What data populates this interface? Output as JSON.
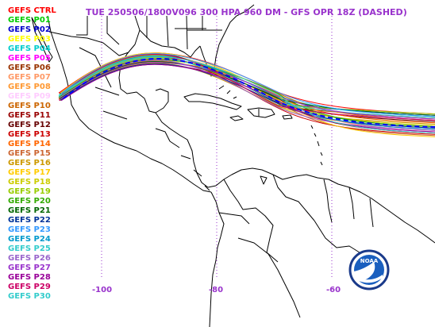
{
  "title": "TUE 250506/1800V096  300 HPA 960 DM - GFS OPR 18Z (DASHED)",
  "legend": [
    {
      "label": "GEFS CTRL",
      "color": "#ff0000"
    },
    {
      "label": "GEFS P01",
      "color": "#00cc00"
    },
    {
      "label": "GEFS P02",
      "color": "#0000cc"
    },
    {
      "label": "GEFS P03",
      "color": "#ffff00"
    },
    {
      "label": "GEFS P04",
      "color": "#00cccc"
    },
    {
      "label": "GEFS P05",
      "color": "#ff00ff"
    },
    {
      "label": "GEFS P06",
      "color": "#993300"
    },
    {
      "label": "GEFS P07",
      "color": "#ff9966"
    },
    {
      "label": "GEFS P08",
      "color": "#ff9933"
    },
    {
      "label": "GEFS P09",
      "color": "#ffccff"
    },
    {
      "label": "GEFS P10",
      "color": "#cc6600"
    },
    {
      "label": "GEFS P11",
      "color": "#990000"
    },
    {
      "label": "GEFS P12",
      "color": "#660000"
    },
    {
      "label": "GEFS P13",
      "color": "#cc0000"
    },
    {
      "label": "GEFS P14",
      "color": "#ff6600"
    },
    {
      "label": "GEFS P15",
      "color": "#cc6633"
    },
    {
      "label": "GEFS P16",
      "color": "#cc9900"
    },
    {
      "label": "GEFS P17",
      "color": "#ffcc00"
    },
    {
      "label": "GEFS P18",
      "color": "#cccc00"
    },
    {
      "label": "GEFS P19",
      "color": "#99cc00"
    },
    {
      "label": "GEFS P20",
      "color": "#33aa00"
    },
    {
      "label": "GEFS P21",
      "color": "#006600"
    },
    {
      "label": "GEFS P22",
      "color": "#003399"
    },
    {
      "label": "GEFS P23",
      "color": "#3399ff"
    },
    {
      "label": "GEFS P24",
      "color": "#0099cc"
    },
    {
      "label": "GEFS P25",
      "color": "#33cccc"
    },
    {
      "label": "GEFS P26",
      "color": "#9966cc"
    },
    {
      "label": "GEFS P27",
      "color": "#9933cc"
    },
    {
      "label": "GEFS P28",
      "color": "#990099"
    },
    {
      "label": "GEFS P29",
      "color": "#cc0066"
    },
    {
      "label": "GEFS P30",
      "color": "#33cccc"
    }
  ],
  "longitude_labels": [
    "-100",
    "-80",
    "-60"
  ],
  "colors": {
    "title": "#9933cc",
    "gridlines": "#9933cc",
    "land": "#000000",
    "operational": "#0000ff"
  },
  "logo": {
    "text": "NOAA"
  }
}
